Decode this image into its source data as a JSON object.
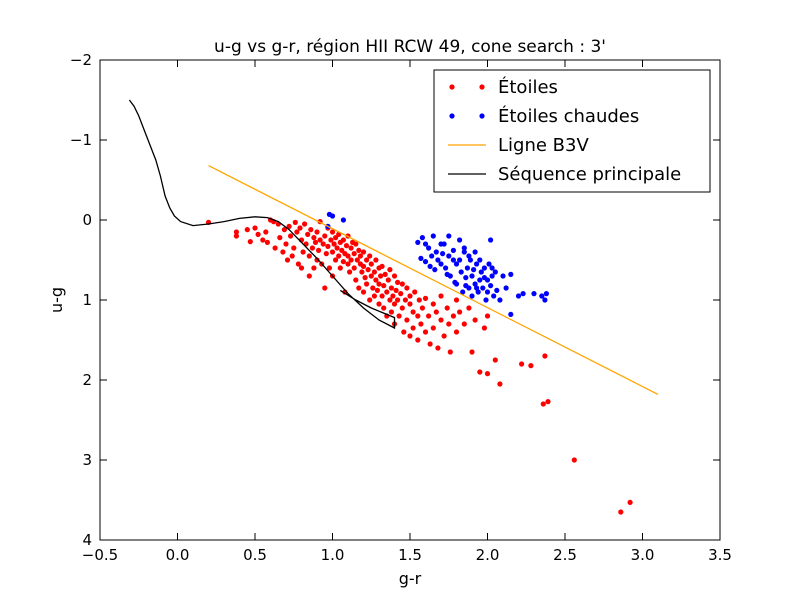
{
  "chart_data": {
    "type": "scatter",
    "title": "u-g vs g-r, région HII RCW 49, cone search : 3'",
    "xlabel": "g-r",
    "ylabel": "u-g",
    "xlim": [
      -0.5,
      3.5
    ],
    "ylim": [
      4,
      -2
    ],
    "y_inverted": true,
    "xticks": [
      -0.5,
      0.0,
      0.5,
      1.0,
      1.5,
      2.0,
      2.5,
      3.0,
      3.5
    ],
    "xtick_labels": [
      "−0.5",
      "0.0",
      "0.5",
      "1.0",
      "1.5",
      "2.0",
      "2.5",
      "3.0",
      "3.5"
    ],
    "yticks": [
      -2,
      -1,
      0,
      1,
      2,
      3,
      4
    ],
    "ytick_labels": [
      "−2",
      "−1",
      "0",
      "1",
      "2",
      "3",
      "4"
    ],
    "grid": false,
    "legend_position": "top-right",
    "series": [
      {
        "name": "Étoiles",
        "kind": "scatter",
        "color": "#ff0000",
        "points": [
          [
            0.2,
            0.03
          ],
          [
            0.38,
            0.2
          ],
          [
            0.38,
            0.15
          ],
          [
            0.45,
            0.12
          ],
          [
            0.47,
            0.27
          ],
          [
            0.5,
            0.1
          ],
          [
            0.52,
            0.18
          ],
          [
            0.55,
            0.25
          ],
          [
            0.57,
            0.15
          ],
          [
            0.58,
            0.28
          ],
          [
            0.6,
            0.0
          ],
          [
            0.62,
            0.02
          ],
          [
            0.63,
            0.35
          ],
          [
            0.65,
            0.05
          ],
          [
            0.66,
            0.22
          ],
          [
            0.68,
            0.4
          ],
          [
            0.69,
            0.12
          ],
          [
            0.7,
            0.3
          ],
          [
            0.71,
            0.5
          ],
          [
            0.72,
            0.08
          ],
          [
            0.73,
            0.2
          ],
          [
            0.74,
            0.45
          ],
          [
            0.75,
            0.35
          ],
          [
            0.76,
            0.03
          ],
          [
            0.77,
            0.15
          ],
          [
            0.78,
            0.55
          ],
          [
            0.79,
            0.1
          ],
          [
            0.8,
            0.25
          ],
          [
            0.8,
            0.6
          ],
          [
            0.81,
            0.4
          ],
          [
            0.82,
            0.05
          ],
          [
            0.83,
            0.3
          ],
          [
            0.84,
            0.18
          ],
          [
            0.85,
            0.7
          ],
          [
            0.85,
            0.45
          ],
          [
            0.86,
            0.12
          ],
          [
            0.87,
            0.35
          ],
          [
            0.88,
            0.22
          ],
          [
            0.88,
            0.6
          ],
          [
            0.89,
            0.28
          ],
          [
            0.9,
            0.5
          ],
          [
            0.9,
            0.15
          ],
          [
            0.91,
            0.38
          ],
          [
            0.92,
            0.02
          ],
          [
            0.92,
            0.25
          ],
          [
            0.93,
            0.55
          ],
          [
            0.94,
            0.3
          ],
          [
            0.95,
            0.2
          ],
          [
            0.95,
            0.85
          ],
          [
            0.96,
            0.42
          ],
          [
            0.97,
            0.1
          ],
          [
            0.97,
            0.33
          ],
          [
            0.98,
            0.6
          ],
          [
            0.99,
            0.25
          ],
          [
            1.0,
            0.4
          ],
          [
            1.0,
            0.15
          ],
          [
            1.0,
            0.7
          ],
          [
            1.01,
            0.3
          ],
          [
            1.02,
            0.5
          ],
          [
            1.02,
            0.22
          ],
          [
            1.03,
            0.35
          ],
          [
            1.04,
            0.45
          ],
          [
            1.04,
            0.18
          ],
          [
            1.05,
            0.6
          ],
          [
            1.05,
            0.28
          ],
          [
            1.06,
            0.38
          ],
          [
            1.07,
            0.52
          ],
          [
            1.07,
            0.25
          ],
          [
            1.08,
            0.42
          ],
          [
            1.08,
            0.9
          ],
          [
            1.09,
            0.32
          ],
          [
            1.1,
            0.55
          ],
          [
            1.1,
            0.2
          ],
          [
            1.1,
            0.45
          ],
          [
            1.11,
            0.65
          ],
          [
            1.12,
            0.35
          ],
          [
            1.12,
            0.5
          ],
          [
            1.13,
            0.28
          ],
          [
            1.14,
            0.6
          ],
          [
            1.14,
            0.42
          ],
          [
            1.15,
            0.75
          ],
          [
            1.15,
            0.3
          ],
          [
            1.16,
            0.5
          ],
          [
            1.17,
            0.38
          ],
          [
            1.17,
            0.85
          ],
          [
            1.18,
            0.55
          ],
          [
            1.18,
            0.45
          ],
          [
            1.19,
            0.65
          ],
          [
            1.2,
            0.4
          ],
          [
            1.2,
            0.9
          ],
          [
            1.2,
            0.58
          ],
          [
            1.21,
            0.72
          ],
          [
            1.22,
            0.5
          ],
          [
            1.22,
            0.8
          ],
          [
            1.23,
            0.62
          ],
          [
            1.24,
            0.45
          ],
          [
            1.24,
            1.0
          ],
          [
            1.25,
            0.7
          ],
          [
            1.25,
            0.55
          ],
          [
            1.26,
            0.85
          ],
          [
            1.27,
            0.65
          ],
          [
            1.27,
            0.95
          ],
          [
            1.28,
            0.75
          ],
          [
            1.28,
            0.5
          ],
          [
            1.29,
            0.88
          ],
          [
            1.3,
            0.6
          ],
          [
            1.3,
            1.05
          ],
          [
            1.3,
            0.8
          ],
          [
            1.31,
            0.7
          ],
          [
            1.32,
            0.95
          ],
          [
            1.32,
            0.58
          ],
          [
            1.33,
            1.1
          ],
          [
            1.33,
            0.82
          ],
          [
            1.34,
            0.68
          ],
          [
            1.35,
            0.9
          ],
          [
            1.35,
            1.2
          ],
          [
            1.36,
            0.75
          ],
          [
            1.37,
            1.0
          ],
          [
            1.37,
            0.62
          ],
          [
            1.38,
            0.85
          ],
          [
            1.38,
            1.15
          ],
          [
            1.39,
            0.95
          ],
          [
            1.4,
            0.7
          ],
          [
            1.4,
            1.05
          ],
          [
            1.4,
            1.3
          ],
          [
            1.41,
            0.88
          ],
          [
            1.42,
            1.0
          ],
          [
            1.42,
            0.78
          ],
          [
            1.43,
            1.2
          ],
          [
            1.44,
            0.92
          ],
          [
            1.45,
            1.1
          ],
          [
            1.45,
            0.8
          ],
          [
            1.46,
            1.4
          ],
          [
            1.47,
            1.0
          ],
          [
            1.48,
            1.25
          ],
          [
            1.48,
            0.85
          ],
          [
            1.5,
            1.05
          ],
          [
            1.5,
            1.45
          ],
          [
            1.5,
            0.95
          ],
          [
            1.52,
            1.15
          ],
          [
            1.52,
            1.35
          ],
          [
            1.53,
            0.9
          ],
          [
            1.55,
            1.2
          ],
          [
            1.55,
            1.5
          ],
          [
            1.56,
            1.0
          ],
          [
            1.57,
            1.3
          ],
          [
            1.58,
            1.1
          ],
          [
            1.6,
            1.4
          ],
          [
            1.6,
            0.98
          ],
          [
            1.62,
            1.2
          ],
          [
            1.63,
            1.55
          ],
          [
            1.65,
            1.05
          ],
          [
            1.65,
            1.35
          ],
          [
            1.67,
            1.15
          ],
          [
            1.68,
            1.6
          ],
          [
            1.7,
            1.25
          ],
          [
            1.7,
            0.95
          ],
          [
            1.72,
            1.45
          ],
          [
            1.74,
            1.1
          ],
          [
            1.75,
            1.3
          ],
          [
            1.76,
            1.65
          ],
          [
            1.78,
            1.2
          ],
          [
            1.8,
            1.0
          ],
          [
            1.8,
            1.4
          ],
          [
            1.82,
            1.15
          ],
          [
            1.85,
            1.3
          ],
          [
            1.88,
            1.1
          ],
          [
            1.9,
            1.65
          ],
          [
            1.92,
            1.25
          ],
          [
            1.95,
            1.9
          ],
          [
            1.98,
            1.35
          ],
          [
            2.0,
            1.2
          ],
          [
            2.0,
            1.92
          ],
          [
            2.05,
            1.75
          ],
          [
            2.08,
            2.05
          ],
          [
            2.22,
            1.8
          ],
          [
            2.28,
            1.82
          ],
          [
            2.37,
            1.7
          ],
          [
            2.36,
            2.3
          ],
          [
            2.39,
            2.27
          ],
          [
            2.56,
            3.0
          ],
          [
            2.86,
            3.65
          ],
          [
            2.92,
            3.53
          ]
        ]
      },
      {
        "name": "Étoiles chaudes",
        "kind": "scatter",
        "color": "#0000ff",
        "points": [
          [
            0.98,
            -0.07
          ],
          [
            1.0,
            -0.05
          ],
          [
            1.07,
            0.0
          ],
          [
            0.97,
            0.08
          ],
          [
            1.55,
            0.28
          ],
          [
            1.58,
            0.22
          ],
          [
            1.6,
            0.3
          ],
          [
            1.62,
            0.35
          ],
          [
            1.65,
            0.2
          ],
          [
            1.67,
            0.4
          ],
          [
            1.68,
            0.5
          ],
          [
            1.7,
            0.55
          ],
          [
            1.72,
            0.3
          ],
          [
            1.73,
            0.6
          ],
          [
            1.75,
            0.45
          ],
          [
            1.76,
            0.7
          ],
          [
            1.78,
            0.38
          ],
          [
            1.8,
            0.55
          ],
          [
            1.8,
            0.8
          ],
          [
            1.82,
            0.5
          ],
          [
            1.83,
            0.65
          ],
          [
            1.84,
            0.9
          ],
          [
            1.85,
            0.4
          ],
          [
            1.86,
            0.72
          ],
          [
            1.87,
            0.6
          ],
          [
            1.88,
            0.85
          ],
          [
            1.89,
            0.5
          ],
          [
            1.9,
            0.7
          ],
          [
            1.9,
            0.95
          ],
          [
            1.91,
            0.62
          ],
          [
            1.92,
            0.8
          ],
          [
            1.93,
            0.55
          ],
          [
            1.94,
            0.9
          ],
          [
            1.95,
            0.75
          ],
          [
            1.96,
            0.65
          ],
          [
            1.97,
            0.85
          ],
          [
            1.98,
            0.6
          ],
          [
            1.99,
            1.0
          ],
          [
            2.0,
            0.75
          ],
          [
            2.0,
            0.9
          ],
          [
            2.01,
            0.55
          ],
          [
            2.02,
            0.82
          ],
          [
            2.03,
            0.7
          ],
          [
            2.04,
            0.95
          ],
          [
            2.05,
            0.65
          ],
          [
            2.06,
            0.88
          ],
          [
            2.08,
            1.0
          ],
          [
            2.1,
            0.7
          ],
          [
            2.12,
            0.85
          ],
          [
            2.15,
            0.68
          ],
          [
            2.15,
            1.18
          ],
          [
            2.2,
            0.95
          ],
          [
            2.23,
            0.92
          ],
          [
            2.3,
            0.92
          ],
          [
            2.35,
            0.95
          ],
          [
            2.37,
            1.0
          ],
          [
            2.38,
            0.92
          ],
          [
            1.6,
            0.52
          ],
          [
            1.63,
            0.58
          ],
          [
            1.7,
            0.3
          ],
          [
            1.75,
            0.2
          ],
          [
            1.78,
            0.5
          ],
          [
            1.82,
            0.25
          ],
          [
            1.85,
            0.35
          ],
          [
            1.88,
            0.45
          ],
          [
            1.92,
            0.4
          ],
          [
            1.95,
            0.5
          ],
          [
            2.02,
            0.25
          ],
          [
            1.66,
            0.62
          ],
          [
            1.74,
            0.68
          ],
          [
            1.79,
            0.78
          ],
          [
            1.86,
            0.82
          ],
          [
            1.93,
            0.85
          ],
          [
            1.98,
            0.72
          ],
          [
            2.03,
            0.6
          ],
          [
            1.71,
            0.42
          ],
          [
            1.64,
            0.45
          ],
          [
            1.57,
            0.48
          ]
        ]
      },
      {
        "name": "Ligne B3V",
        "kind": "line",
        "color": "#ffa500",
        "points": [
          [
            0.2,
            -0.68
          ],
          [
            3.1,
            2.18
          ]
        ]
      },
      {
        "name": "Séquence principale",
        "kind": "line",
        "color": "#000000",
        "points": [
          [
            -0.31,
            -1.5
          ],
          [
            -0.28,
            -1.42
          ],
          [
            -0.25,
            -1.3
          ],
          [
            -0.22,
            -1.15
          ],
          [
            -0.18,
            -0.95
          ],
          [
            -0.14,
            -0.75
          ],
          [
            -0.11,
            -0.55
          ],
          [
            -0.08,
            -0.3
          ],
          [
            -0.05,
            -0.15
          ],
          [
            -0.02,
            -0.05
          ],
          [
            0.02,
            0.02
          ],
          [
            0.1,
            0.07
          ],
          [
            0.2,
            0.05
          ],
          [
            0.3,
            0.02
          ],
          [
            0.4,
            -0.02
          ],
          [
            0.5,
            -0.04
          ],
          [
            0.58,
            -0.03
          ],
          [
            0.65,
            0.02
          ],
          [
            0.72,
            0.12
          ],
          [
            0.8,
            0.28
          ],
          [
            0.9,
            0.48
          ],
          [
            1.0,
            0.7
          ],
          [
            1.1,
            0.92
          ],
          [
            1.2,
            1.1
          ],
          [
            1.3,
            1.25
          ],
          [
            1.4,
            1.35
          ],
          [
            1.4,
            1.22
          ],
          [
            1.35,
            1.18
          ],
          [
            1.25,
            1.1
          ],
          [
            1.15,
            1.0
          ],
          [
            1.05,
            0.88
          ]
        ]
      }
    ]
  }
}
